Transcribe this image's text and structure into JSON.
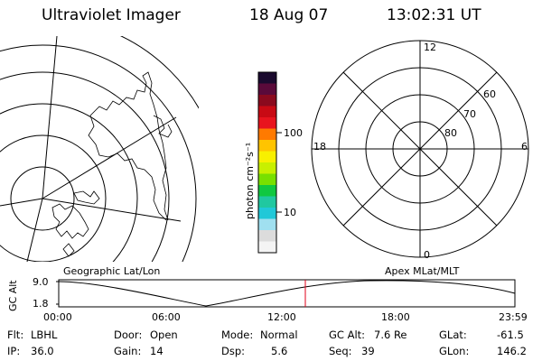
{
  "header": {
    "instrument": "Ultraviolet Imager",
    "date": "18 Aug 07",
    "time": "13:02:31 UT"
  },
  "color_bar": {
    "unit_label": "photon cm⁻²s⁻¹",
    "ticks": [
      "100",
      "10"
    ],
    "colors": [
      "#1a0a2e",
      "#5a0a3a",
      "#8a0a1e",
      "#c80a14",
      "#e8141e",
      "#ff7a00",
      "#ffc400",
      "#f8f000",
      "#c8f000",
      "#78e000",
      "#10c840",
      "#20c8a0",
      "#20c8d8",
      "#a0e0f0",
      "#dcdcdc",
      "#f4f4f4"
    ]
  },
  "polar_plot": {
    "mlt_labels": {
      "top": "12",
      "left": "18",
      "right": "6",
      "bottom": "0"
    },
    "mlat_labels": [
      "60",
      "70",
      "80"
    ]
  },
  "timeline": {
    "y_axis_label": "GC Alt",
    "y_ticks": [
      "9.0",
      "1.8"
    ],
    "x_ticks": [
      "00:00",
      "06:00",
      "12:00",
      "18:00",
      "23:59"
    ],
    "left_title": "Geographic Lat/Lon",
    "right_title": "Apex MLat/MLT",
    "current_time_marker_color": "#e0001a"
  },
  "status": {
    "flt_label": "Flt:",
    "flt_value": "LBHL",
    "ip_label": "IP:",
    "ip_value": "36.0",
    "door_label": "Door:",
    "door_value": "Open",
    "gain_label": "Gain:",
    "gain_value": "14",
    "mode_label": "Mode:",
    "mode_value": "Normal",
    "dsp_label": "Dsp:",
    "dsp_value": "5.6",
    "gcalt_label": "GC Alt:",
    "gcalt_value": "7.6 Re",
    "seq_label": "Seq:",
    "seq_value": "39",
    "glat_label": "GLat:",
    "glat_value": "-61.5",
    "glon_label": "GLon:",
    "glon_value": "146.2"
  }
}
